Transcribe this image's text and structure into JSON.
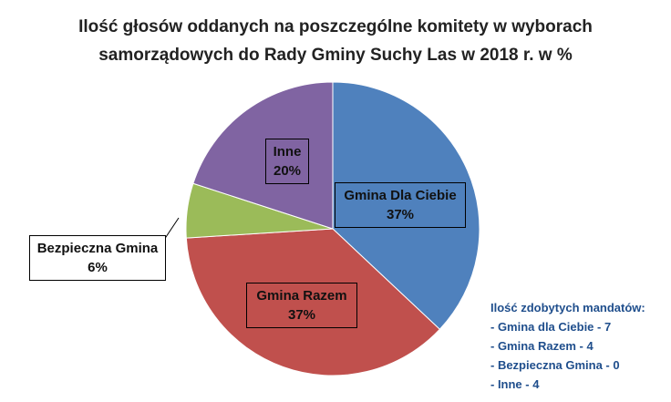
{
  "chart_data": {
    "type": "pie",
    "title_lines": [
      "Ilość głosów oddanych na poszczególne komitety w wyborach",
      "samorządowych  do Rady Gminy Suchy Las w 2018 r. w %"
    ],
    "slices": [
      {
        "label": "Gmina Dla Ciebie",
        "value": 37,
        "value_label": "37%",
        "color": "#4f81bd"
      },
      {
        "label": "Gmina Razem",
        "value": 37,
        "value_label": "37%",
        "color": "#c0504d"
      },
      {
        "label": "Bezpieczna Gmina",
        "value": 6,
        "value_label": "6%",
        "color": "#9bbb59"
      },
      {
        "label": "Inne",
        "value": 20,
        "value_label": "20%",
        "color": "#8064a2"
      }
    ]
  },
  "annotation": {
    "heading": "Ilość zdobytych mandatów:",
    "items": [
      "- Gmina dla Ciebie - 7",
      "- Gmina Razem - 4",
      "- Bezpieczna Gmina - 0",
      "- Inne - 4"
    ]
  }
}
